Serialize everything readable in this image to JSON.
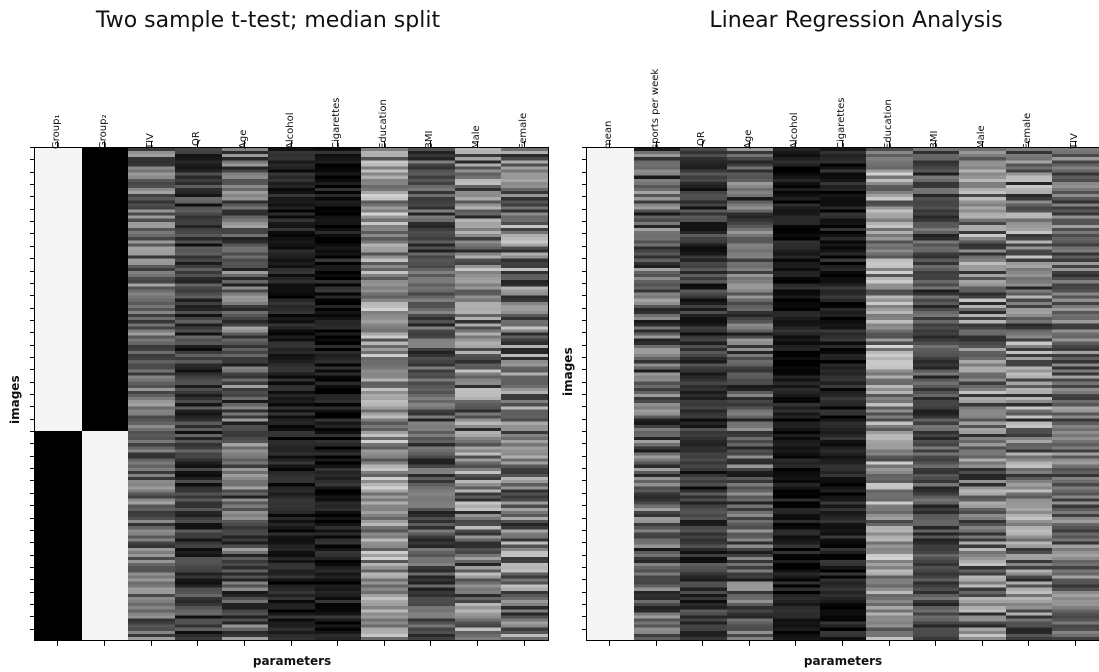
{
  "panels": [
    {
      "title": "Two sample t-test; median split",
      "ylabel": "images",
      "xlabel": "parameters",
      "columns": [
        {
          "label": "Group₁",
          "pattern": "group1"
        },
        {
          "label": "Group₂",
          "pattern": "group2"
        },
        {
          "label": "TIV",
          "pattern": "noise",
          "mean": 0.45,
          "spread": 0.25
        },
        {
          "label": "IQR",
          "pattern": "noise",
          "mean": 0.25,
          "spread": 0.2
        },
        {
          "label": "Age",
          "pattern": "noise",
          "mean": 0.4,
          "spread": 0.3
        },
        {
          "label": "Alcohol",
          "pattern": "noise",
          "mean": 0.12,
          "spread": 0.12
        },
        {
          "label": "Cigarettes",
          "pattern": "noise",
          "mean": 0.1,
          "spread": 0.15
        },
        {
          "label": "Education",
          "pattern": "noise",
          "mean": 0.62,
          "spread": 0.28
        },
        {
          "label": "BMI",
          "pattern": "noise",
          "mean": 0.35,
          "spread": 0.22
        },
        {
          "label": "Male",
          "pattern": "noise",
          "mean": 0.5,
          "spread": 0.35
        },
        {
          "label": "Female",
          "pattern": "noise",
          "mean": 0.5,
          "spread": 0.35
        }
      ]
    },
    {
      "title": "Linear Regression Analysis",
      "ylabel": "images",
      "xlabel": "parameters",
      "columns": [
        {
          "label": "mean",
          "pattern": "white"
        },
        {
          "label": "sports per week",
          "pattern": "noise",
          "mean": 0.4,
          "spread": 0.3
        },
        {
          "label": "IQR",
          "pattern": "noise",
          "mean": 0.22,
          "spread": 0.18
        },
        {
          "label": "Age",
          "pattern": "noise",
          "mean": 0.38,
          "spread": 0.28
        },
        {
          "label": "Alcohol",
          "pattern": "noise",
          "mean": 0.1,
          "spread": 0.12
        },
        {
          "label": "Cigarettes",
          "pattern": "noise",
          "mean": 0.12,
          "spread": 0.14
        },
        {
          "label": "Education",
          "pattern": "noise",
          "mean": 0.6,
          "spread": 0.3
        },
        {
          "label": "BMI",
          "pattern": "noise",
          "mean": 0.32,
          "spread": 0.2
        },
        {
          "label": "Male",
          "pattern": "noise",
          "mean": 0.5,
          "spread": 0.35
        },
        {
          "label": "Female",
          "pattern": "noise",
          "mean": 0.5,
          "spread": 0.35
        },
        {
          "label": "TIV",
          "pattern": "noise",
          "mean": 0.45,
          "spread": 0.25
        }
      ]
    }
  ],
  "colors": {
    "white": "#f4f4f4",
    "black": "#000000",
    "border": "#000000"
  }
}
